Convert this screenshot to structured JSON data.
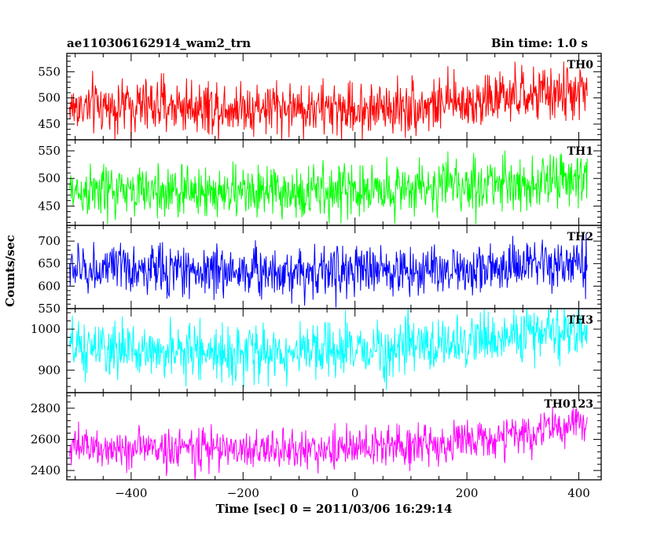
{
  "chart_data": {
    "type": "line",
    "title": "ae110306162914_wam2_trn",
    "subtitle": "Bin time: 1.0 s",
    "xlabel": "Time [sec] 0 = 2011/03/06 16:29:14",
    "ylabel": "Counts/sec",
    "x_range": [
      -510,
      415
    ],
    "xlim": [
      -515,
      440
    ],
    "x_ticks": [
      -400,
      -200,
      0,
      200,
      400
    ],
    "x_tick_labels": [
      "−400",
      "−200",
      "0",
      "200",
      "400"
    ],
    "grid": false,
    "panels": [
      {
        "name": "TH0",
        "color": "#ff0000",
        "ylim": [
          420,
          585
        ],
        "y_ticks": [
          450,
          500,
          550
        ],
        "y_tick_labels": [
          "450",
          "500",
          "550"
        ],
        "trend": {
          "x": [
            -510,
            -350,
            -150,
            0,
            150,
            300,
            415
          ],
          "y": [
            482,
            486,
            482,
            478,
            487,
            503,
            512
          ]
        },
        "noise_sd": 26
      },
      {
        "name": "TH1",
        "color": "#00ff00",
        "ylim": [
          415,
          570
        ],
        "y_ticks": [
          450,
          500,
          550
        ],
        "y_tick_labels": [
          "450",
          "500",
          "550"
        ],
        "trend": {
          "x": [
            -510,
            -300,
            -100,
            100,
            300,
            415
          ],
          "y": [
            476,
            476,
            474,
            483,
            492,
            498
          ]
        },
        "noise_sd": 24
      },
      {
        "name": "TH2",
        "color": "#0000ff",
        "ylim": [
          550,
          735
        ],
        "y_ticks": [
          550,
          600,
          650,
          700
        ],
        "y_tick_labels": [
          "550",
          "600",
          "650",
          "700"
        ],
        "trend": {
          "x": [
            -510,
            -200,
            0,
            200,
            415
          ],
          "y": [
            638,
            634,
            633,
            638,
            646
          ]
        },
        "noise_sd": 28
      },
      {
        "name": "TH3",
        "color": "#00ffff",
        "ylim": [
          845,
          1050
        ],
        "y_ticks": [
          900,
          1000
        ],
        "y_tick_labels": [
          "900",
          "1000"
        ],
        "trend": {
          "x": [
            -510,
            -300,
            -100,
            100,
            300,
            415
          ],
          "y": [
            950,
            945,
            940,
            955,
            985,
            1002
          ]
        },
        "noise_sd": 33
      },
      {
        "name": "TH0123",
        "color": "#ff00ff",
        "ylim": [
          2340,
          2900
        ],
        "y_ticks": [
          2400,
          2600,
          2800
        ],
        "y_tick_labels": [
          "2400",
          "2600",
          "2800"
        ],
        "trend": {
          "x": [
            -510,
            -300,
            -100,
            100,
            250,
            350,
            415
          ],
          "y": [
            2545,
            2540,
            2530,
            2560,
            2605,
            2660,
            2715
          ]
        },
        "noise_sd": 65
      }
    ]
  }
}
